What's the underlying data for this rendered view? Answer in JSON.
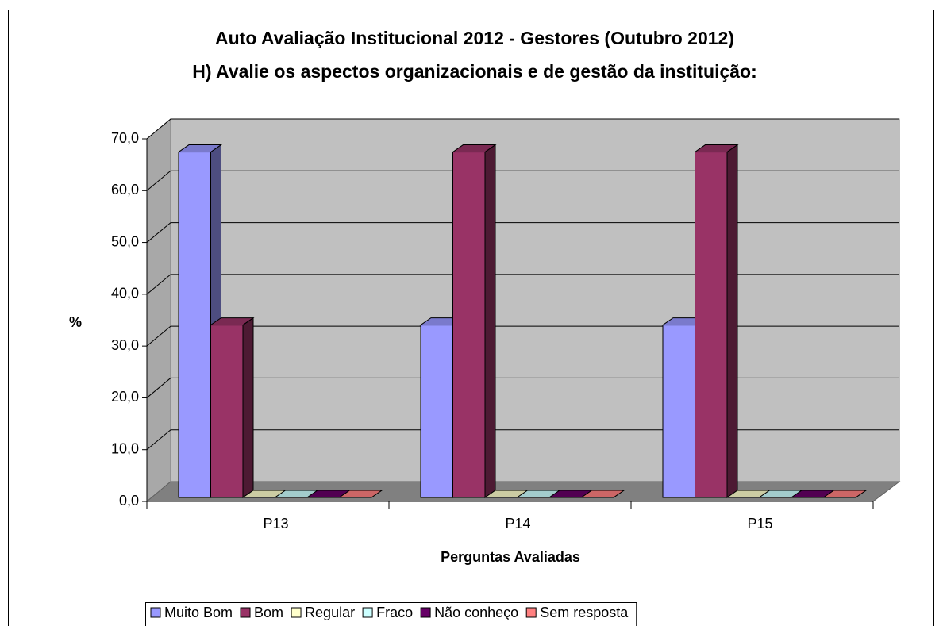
{
  "chart_data": {
    "type": "bar3d",
    "title": "Auto Avaliação Institucional 2012 - Gestores (Outubro 2012)",
    "subtitle": "H) Avalie os aspectos organizacionais e de gestão da instituição:",
    "x_label": "Perguntas Avaliadas",
    "y_label": "%",
    "categories": [
      "P13",
      "P14",
      "P15"
    ],
    "series": [
      {
        "name": "Muito Bom",
        "color": "#9999ff",
        "values": [
          66.7,
          33.3,
          33.3
        ]
      },
      {
        "name": "Bom",
        "color": "#993366",
        "values": [
          33.3,
          66.7,
          66.7
        ]
      },
      {
        "name": "Regular",
        "color": "#ffffcc",
        "values": [
          0,
          0,
          0
        ]
      },
      {
        "name": "Fraco",
        "color": "#ccffff",
        "values": [
          0,
          0,
          0
        ]
      },
      {
        "name": "Não conheço",
        "color": "#660066",
        "values": [
          0,
          0,
          0
        ]
      },
      {
        "name": "Sem resposta",
        "color": "#ff8080",
        "values": [
          0,
          0,
          0
        ]
      }
    ],
    "ylim": [
      0,
      70
    ],
    "yticks": [
      {
        "value": 0,
        "label": "0,0"
      },
      {
        "value": 10,
        "label": "10,0"
      },
      {
        "value": 20,
        "label": "20,0"
      },
      {
        "value": 30,
        "label": "30,0"
      },
      {
        "value": 40,
        "label": "40,0"
      },
      {
        "value": 50,
        "label": "50,0"
      },
      {
        "value": 60,
        "label": "60,0"
      },
      {
        "value": 70,
        "label": "70,0"
      }
    ],
    "grid": true,
    "legend": "bottom"
  }
}
